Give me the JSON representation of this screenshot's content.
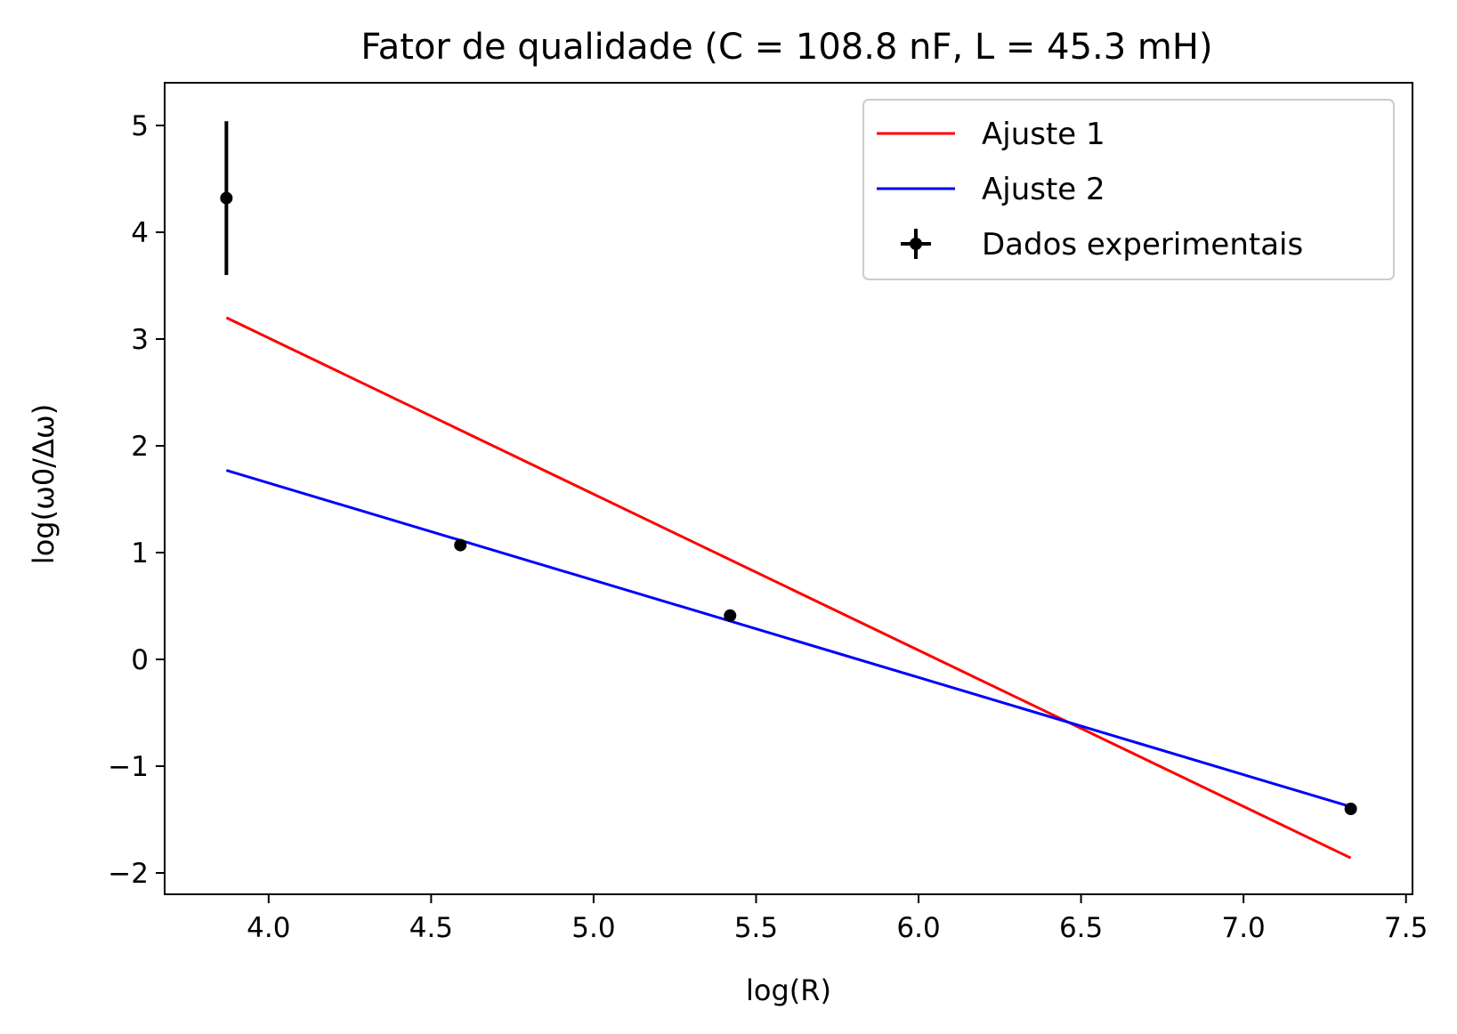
{
  "chart_data": {
    "type": "line",
    "title": "Fator de qualidade (C = 108.8 nF, L = 45.3 mH)",
    "xlabel": "log(R)",
    "ylabel": "log(ω0/Δω)",
    "xlim": [
      3.68,
      7.52
    ],
    "ylim": [
      -2.2,
      5.4
    ],
    "x_ticks": [
      "4.0",
      "4.5",
      "5.0",
      "5.5",
      "6.0",
      "6.5",
      "7.0",
      "7.5"
    ],
    "y_ticks": [
      "−2",
      "−1",
      "0",
      "1",
      "2",
      "3",
      "4",
      "5"
    ],
    "x_tick_values": [
      4.0,
      4.5,
      5.0,
      5.5,
      6.0,
      6.5,
      7.0,
      7.5
    ],
    "y_tick_values": [
      -2,
      -1,
      0,
      1,
      2,
      3,
      4,
      5
    ],
    "grid": false,
    "legend_position": "top-right",
    "series": [
      {
        "name": "Ajuste 1",
        "kind": "line",
        "color": "#ff0000",
        "x": [
          3.87,
          7.33
        ],
        "y": [
          3.2,
          -1.86
        ]
      },
      {
        "name": "Ajuste 2",
        "kind": "line",
        "color": "#0000ff",
        "x": [
          3.87,
          7.33
        ],
        "y": [
          1.77,
          -1.38
        ]
      },
      {
        "name": "Dados experimentais",
        "kind": "errorbar",
        "color": "#000000",
        "x": [
          3.87,
          4.59,
          5.42,
          7.33
        ],
        "y": [
          4.32,
          1.07,
          0.41,
          -1.4
        ],
        "yerr": [
          0.72,
          0.0,
          0.0,
          0.0
        ]
      }
    ]
  }
}
